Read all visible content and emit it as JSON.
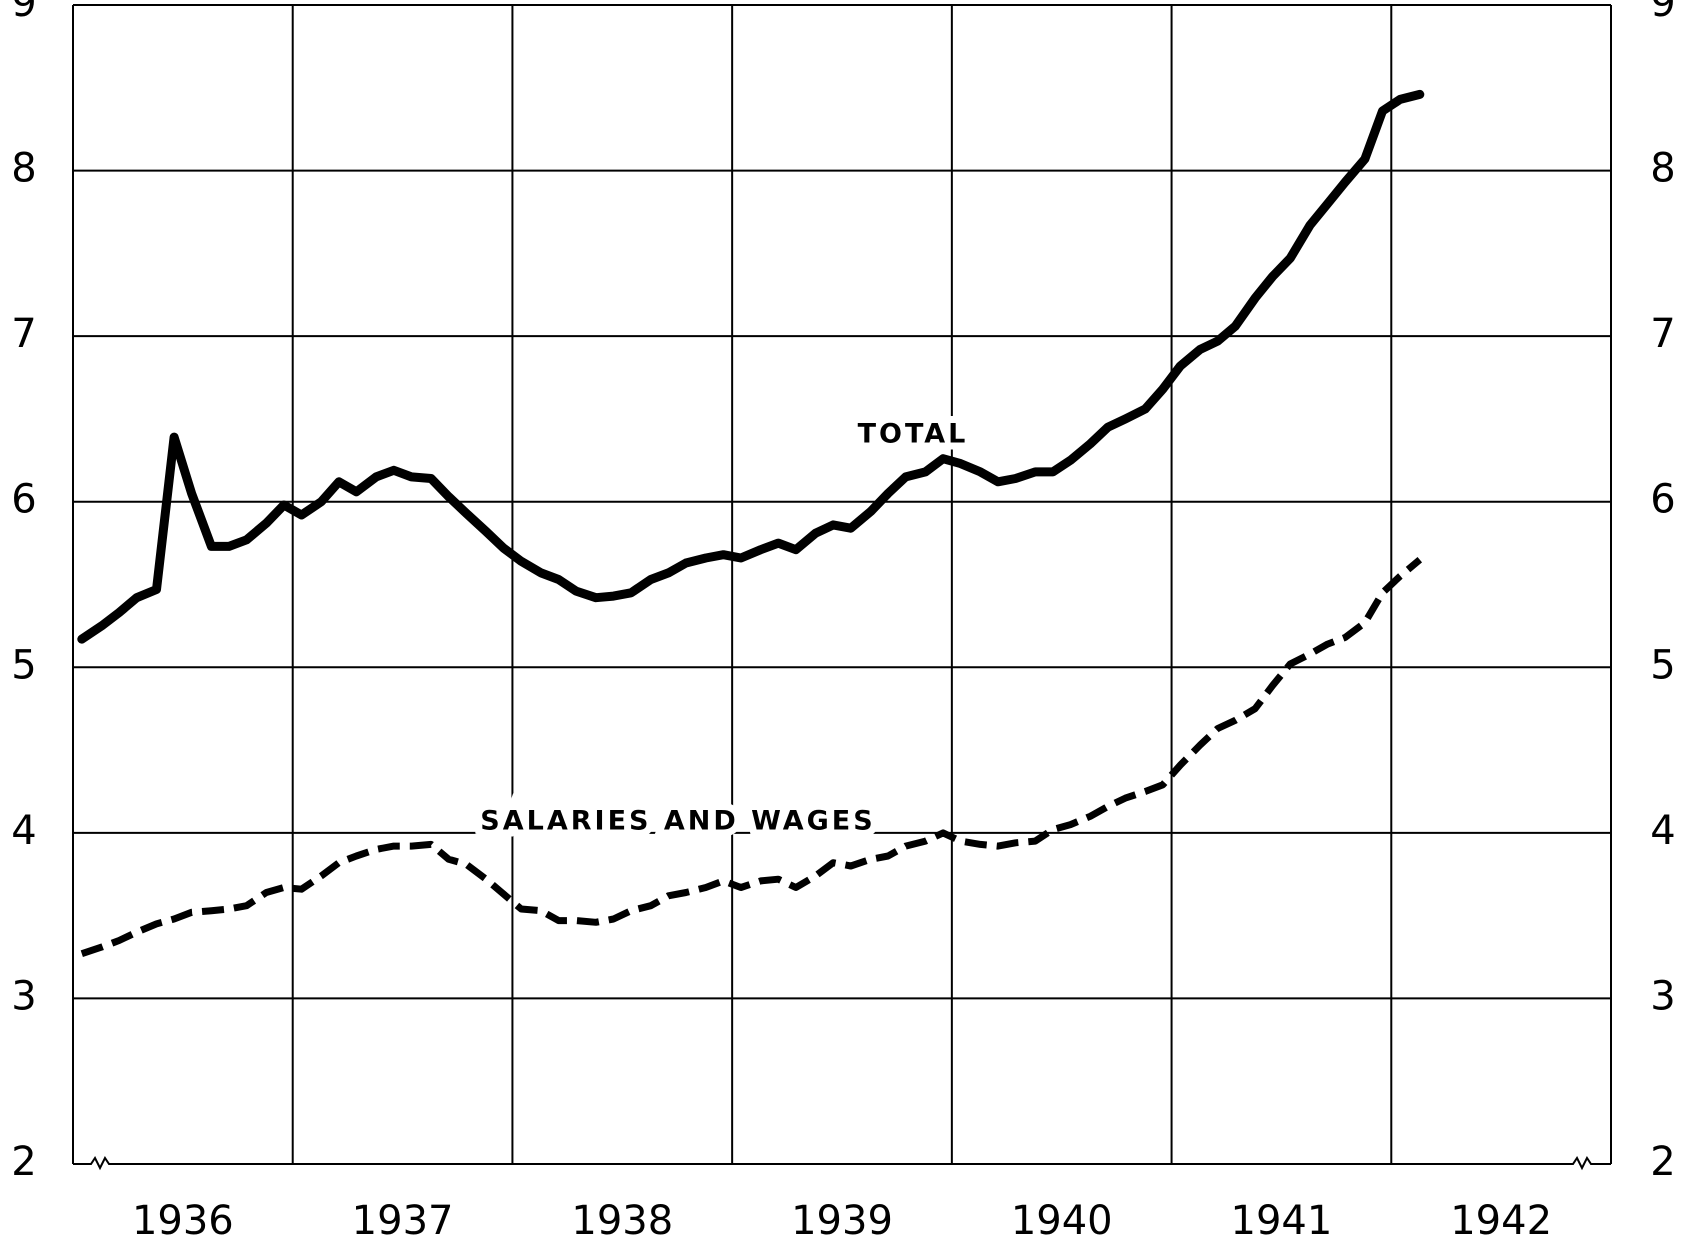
{
  "chart_data": {
    "type": "line",
    "x": [
      1936.04,
      1936.13,
      1936.21,
      1936.29,
      1936.38,
      1936.46,
      1936.54,
      1936.63,
      1936.71,
      1936.79,
      1936.88,
      1936.96,
      1937.04,
      1937.13,
      1937.21,
      1937.29,
      1937.38,
      1937.46,
      1937.54,
      1937.63,
      1937.71,
      1937.79,
      1937.88,
      1937.96,
      1938.04,
      1938.13,
      1938.21,
      1938.29,
      1938.38,
      1938.46,
      1938.54,
      1938.63,
      1938.71,
      1938.79,
      1938.88,
      1938.96,
      1939.04,
      1939.13,
      1939.21,
      1939.29,
      1939.38,
      1939.46,
      1939.54,
      1939.63,
      1939.71,
      1939.79,
      1939.88,
      1939.96,
      1940.04,
      1940.13,
      1940.21,
      1940.29,
      1940.38,
      1940.46,
      1940.54,
      1940.63,
      1940.71,
      1940.79,
      1940.88,
      1940.96,
      1941.04,
      1941.13,
      1941.21,
      1941.29,
      1941.38,
      1941.46,
      1941.54,
      1941.63,
      1941.71,
      1941.79,
      1941.88,
      1941.96,
      1942.04,
      1942.13
    ],
    "series": [
      {
        "name": "TOTAL",
        "color": "#000000",
        "dash": false,
        "values": [
          5.17,
          5.25,
          5.33,
          5.42,
          5.47,
          6.39,
          6.05,
          5.73,
          5.73,
          5.77,
          5.87,
          5.98,
          5.92,
          6.0,
          6.12,
          6.06,
          6.15,
          6.19,
          6.15,
          6.14,
          6.03,
          5.93,
          5.82,
          5.72,
          5.64,
          5.57,
          5.53,
          5.46,
          5.42,
          5.43,
          5.45,
          5.53,
          5.57,
          5.63,
          5.66,
          5.68,
          5.66,
          5.71,
          5.75,
          5.71,
          5.81,
          5.86,
          5.84,
          5.94,
          6.05,
          6.15,
          6.18,
          6.26,
          6.23,
          6.18,
          6.12,
          6.14,
          6.18,
          6.18,
          6.25,
          6.35,
          6.45,
          6.5,
          6.56,
          6.68,
          6.82,
          6.92,
          6.97,
          7.06,
          7.23,
          7.36,
          7.47,
          7.67,
          7.8,
          7.93,
          8.07,
          8.36,
          8.43,
          8.46
        ]
      },
      {
        "name": "SALARIES AND WAGES",
        "color": "#000000",
        "dash": true,
        "values": [
          3.27,
          3.31,
          3.35,
          3.4,
          3.45,
          3.48,
          3.52,
          3.53,
          3.54,
          3.56,
          3.64,
          3.67,
          3.66,
          3.74,
          3.82,
          3.86,
          3.9,
          3.92,
          3.92,
          3.93,
          3.84,
          3.81,
          3.72,
          3.63,
          3.54,
          3.53,
          3.47,
          3.47,
          3.46,
          3.48,
          3.53,
          3.56,
          3.62,
          3.64,
          3.67,
          3.71,
          3.67,
          3.71,
          3.72,
          3.67,
          3.74,
          3.82,
          3.8,
          3.84,
          3.86,
          3.92,
          3.95,
          4.0,
          3.95,
          3.93,
          3.92,
          3.94,
          3.95,
          4.02,
          4.05,
          4.1,
          4.16,
          4.21,
          4.25,
          4.29,
          4.41,
          4.53,
          4.63,
          4.68,
          4.75,
          4.89,
          5.02,
          5.08,
          5.14,
          5.18,
          5.27,
          5.45,
          5.55,
          5.65
        ]
      }
    ],
    "xlim": [
      1936,
      1943
    ],
    "xticks": [
      1936,
      1937,
      1938,
      1939,
      1940,
      1941,
      1942
    ],
    "ylim": [
      2,
      9
    ],
    "yticks": [
      2,
      3,
      4,
      5,
      6,
      7,
      8,
      9
    ],
    "grid": true
  }
}
